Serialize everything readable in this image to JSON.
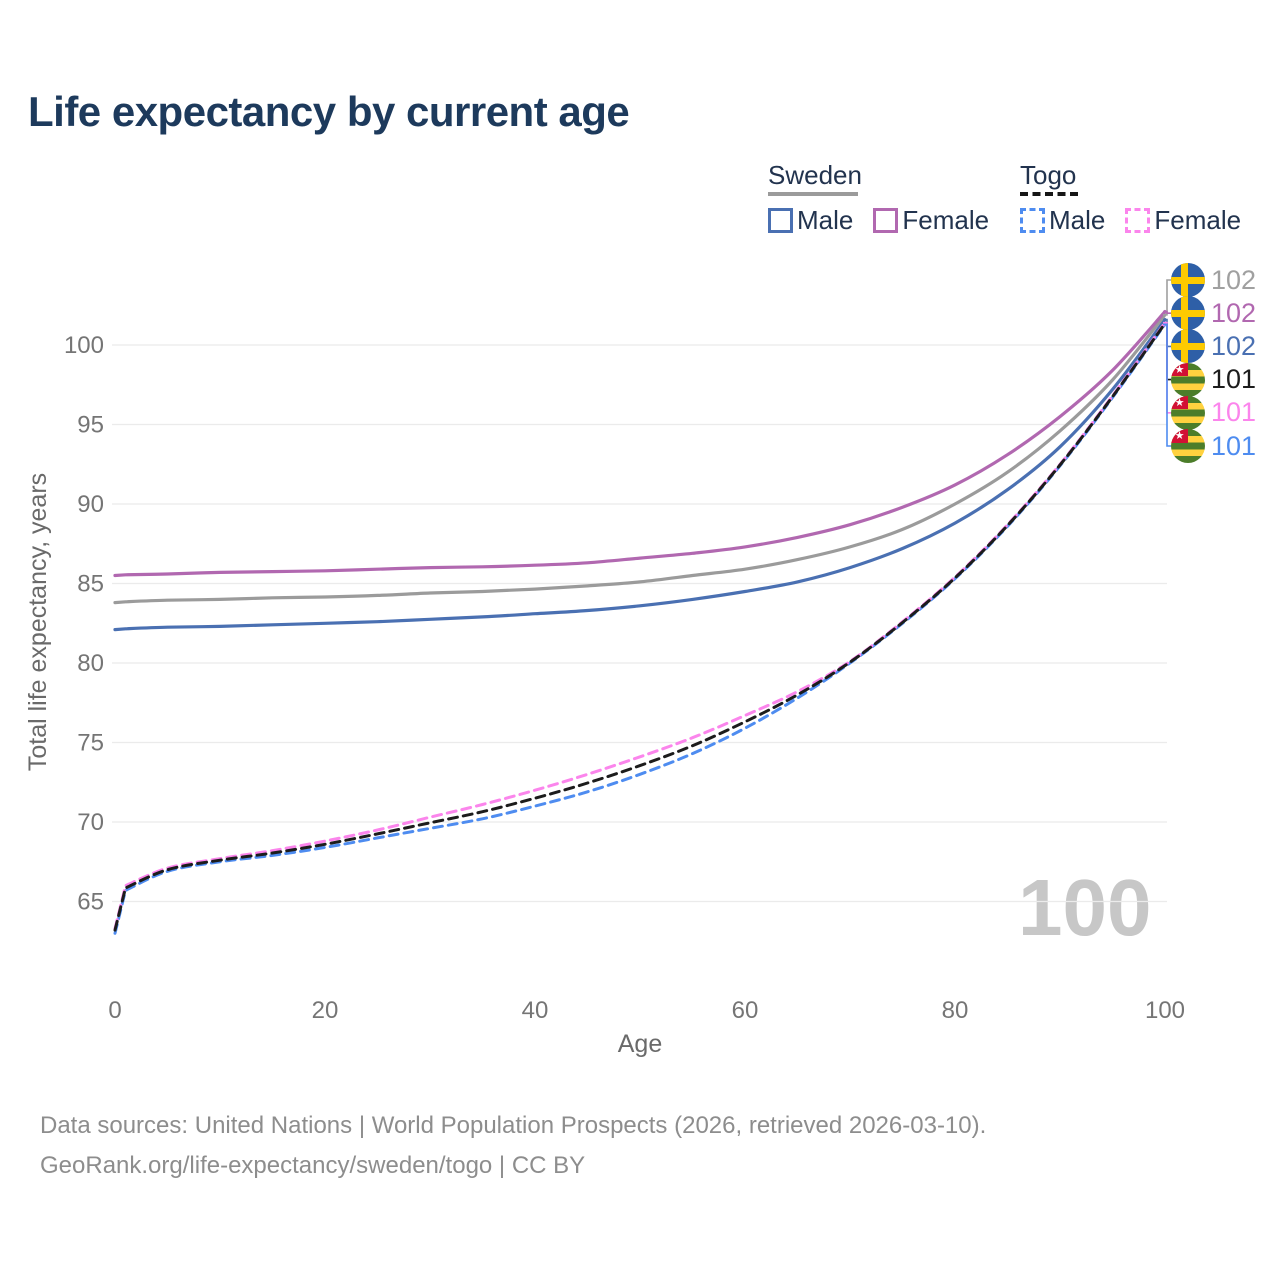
{
  "title": "Life expectancy by current age",
  "legend": {
    "groups": [
      {
        "id": "sweden",
        "label": "Sweden",
        "line_style": "solid",
        "line_color": "#9b9b9b",
        "items": [
          {
            "label": "Male",
            "color": "#4a70b2",
            "style": "solid"
          },
          {
            "label": "Female",
            "color": "#b168b0",
            "style": "solid"
          }
        ]
      },
      {
        "id": "togo",
        "label": "Togo",
        "line_style": "dashed",
        "line_color": "#161616",
        "items": [
          {
            "label": "Male",
            "color": "#4e8cf0",
            "style": "dashed"
          },
          {
            "label": "Female",
            "color": "#fb85ec",
            "style": "dashed"
          }
        ]
      }
    ]
  },
  "chart_data": {
    "type": "line",
    "xlabel": "Age",
    "ylabel": "Total life expectancy, years",
    "x_ticks": [
      0,
      20,
      40,
      60,
      80,
      100
    ],
    "y_ticks": [
      65,
      70,
      75,
      80,
      85,
      90,
      95,
      100
    ],
    "xlim": [
      0,
      100
    ],
    "ylim": [
      62,
      103.5
    ],
    "grid": true,
    "x": [
      0,
      1,
      5,
      10,
      15,
      20,
      25,
      30,
      35,
      40,
      45,
      50,
      55,
      60,
      65,
      70,
      75,
      80,
      85,
      90,
      95,
      100
    ],
    "series": [
      {
        "name": "Sweden Male",
        "country": "Sweden",
        "sex": "Male",
        "color": "#4a70b2",
        "dash": "solid",
        "values": [
          82.1,
          82.15,
          82.25,
          82.3,
          82.4,
          82.5,
          82.6,
          82.75,
          82.9,
          83.1,
          83.3,
          83.6,
          84.0,
          84.5,
          85.1,
          86.0,
          87.2,
          88.8,
          90.9,
          93.6,
          97.2,
          101.6
        ]
      },
      {
        "name": "Sweden Both sexes",
        "country": "Sweden",
        "sex": "Both",
        "color": "#9b9b9b",
        "dash": "solid",
        "values": [
          83.8,
          83.85,
          83.95,
          84.0,
          84.1,
          84.15,
          84.25,
          84.4,
          84.5,
          84.65,
          84.85,
          85.1,
          85.5,
          85.9,
          86.5,
          87.3,
          88.4,
          90.0,
          92.0,
          94.6,
          97.8,
          101.9
        ]
      },
      {
        "name": "Sweden Female",
        "country": "Sweden",
        "sex": "Female",
        "color": "#b168b0",
        "dash": "solid",
        "values": [
          85.5,
          85.55,
          85.6,
          85.7,
          85.75,
          85.8,
          85.9,
          86.0,
          86.05,
          86.15,
          86.3,
          86.6,
          86.9,
          87.3,
          87.9,
          88.7,
          89.8,
          91.2,
          93.1,
          95.5,
          98.4,
          102.1
        ]
      },
      {
        "name": "Togo Male",
        "country": "Togo",
        "sex": "Male",
        "color": "#4e8cf0",
        "dash": "dashed",
        "values": [
          63.0,
          65.7,
          66.9,
          67.5,
          67.9,
          68.4,
          69.0,
          69.6,
          70.2,
          71.0,
          71.9,
          73.0,
          74.3,
          75.9,
          77.8,
          80.0,
          82.5,
          85.3,
          88.6,
          92.4,
          96.7,
          101.3
        ]
      },
      {
        "name": "Togo Female",
        "country": "Togo",
        "sex": "Female",
        "color": "#fb85ec",
        "dash": "dashed",
        "values": [
          63.3,
          66.0,
          67.1,
          67.7,
          68.2,
          68.8,
          69.5,
          70.3,
          71.1,
          72.0,
          73.0,
          74.1,
          75.3,
          76.7,
          78.2,
          80.1,
          82.6,
          85.4,
          88.7,
          92.5,
          96.8,
          101.4
        ]
      },
      {
        "name": "Togo Both sexes",
        "country": "Togo",
        "sex": "Both",
        "color": "#1c1c1c",
        "dash": "dashed",
        "values": [
          63.2,
          65.85,
          67.0,
          67.6,
          68.05,
          68.6,
          69.25,
          69.95,
          70.65,
          71.5,
          72.45,
          73.55,
          74.8,
          76.3,
          78.0,
          80.05,
          82.55,
          85.35,
          88.65,
          92.45,
          96.75,
          101.35
        ]
      }
    ],
    "end_labels": [
      {
        "flag": "sweden",
        "value": "102",
        "color": "#a0a0a0",
        "series_index": 1
      },
      {
        "flag": "sweden",
        "value": "102",
        "color": "#b168b0",
        "series_index": 2
      },
      {
        "flag": "sweden",
        "value": "102",
        "color": "#4a70b2",
        "series_index": 0
      },
      {
        "flag": "togo",
        "value": "101",
        "color": "#1c1c1c",
        "series_index": 5
      },
      {
        "flag": "togo",
        "value": "101",
        "color": "#fb85ec",
        "series_index": 4
      },
      {
        "flag": "togo",
        "value": "101",
        "color": "#4e8cf0",
        "series_index": 3
      }
    ],
    "watermark": "100",
    "grid_color": "#ebebeb",
    "axis_text_color": "#757575"
  },
  "footer": {
    "line1": "Data sources: United Nations | World Population Prospects (2026, retrieved 2026-03-10).",
    "line2": "GeoRank.org/life-expectancy/sweden/togo | CC BY"
  }
}
